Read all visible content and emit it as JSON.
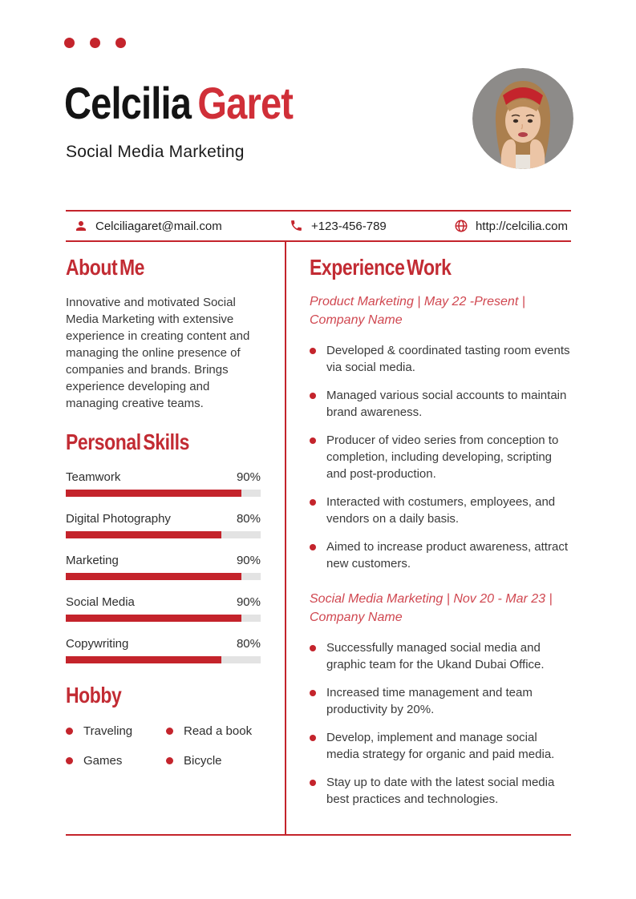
{
  "accent": "#c4242c",
  "header": {
    "first_name": "Celcilia",
    "last_name": "Garet",
    "subtitle": "Social Media Marketing"
  },
  "contact": {
    "email": "Celciliagaret@mail.com",
    "phone": "+123-456-789",
    "website": "http://celcilia.com"
  },
  "about": {
    "heading": "About Me",
    "text": "Innovative and motivated Social Media Marketing with extensive experience in creating content and managing the online presence of companies and brands. Brings experience developing and managing creative teams."
  },
  "skills": {
    "heading": "Personal Skills",
    "items": [
      {
        "label": "Teamwork",
        "percent": 90,
        "display": "90%"
      },
      {
        "label": "Digital Photography",
        "percent": 80,
        "display": "80%"
      },
      {
        "label": "Marketing",
        "percent": 90,
        "display": "90%"
      },
      {
        "label": "Social Media",
        "percent": 90,
        "display": "90%"
      },
      {
        "label": "Copywriting",
        "percent": 80,
        "display": "80%"
      }
    ]
  },
  "hobby": {
    "heading": "Hobby",
    "items": [
      "Traveling",
      "Read a book",
      "Games",
      "Bicycle"
    ]
  },
  "experience": {
    "heading": "Experience Work",
    "jobs": [
      {
        "title": "Product Marketing | May 22 -Present | Company Name",
        "bullets": [
          "Developed & coordinated tasting room events via social media.",
          "Managed various social accounts to maintain brand awareness.",
          "Producer of video series from conception to completion, including developing, scripting and post-production.",
          "Interacted with costumers, employees, and vendors on a daily basis.",
          "Aimed to increase product awareness, attract new customers."
        ]
      },
      {
        "title": "Social Media Marketing | Nov 20 - Mar 23 | Company Name",
        "bullets": [
          "Successfully managed social media and graphic team for the Ukand Dubai Office.",
          "Increased time management and team productivity by 20%.",
          "Develop, implement and manage social media strategy for organic and paid media.",
          "Stay up to date with the latest social media best practices and technologies."
        ]
      }
    ]
  }
}
